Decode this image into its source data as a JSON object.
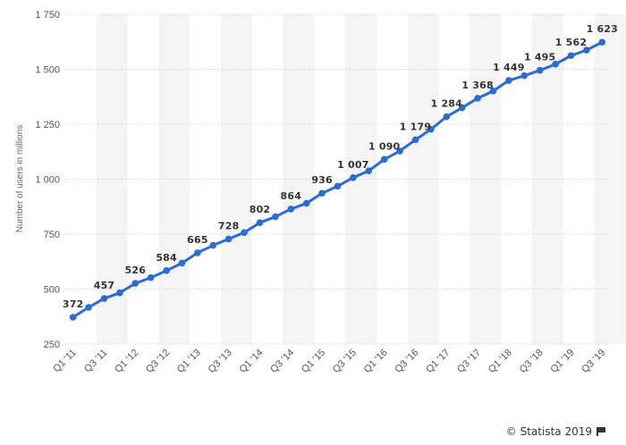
{
  "chart_data": {
    "type": "line",
    "title": "",
    "xlabel": "",
    "ylabel": "Number of users in millions",
    "ylim": [
      250,
      1750
    ],
    "yticks": [
      250,
      500,
      750,
      1000,
      1250,
      1500,
      1750
    ],
    "ytick_labels": [
      "250",
      "500",
      "750",
      "1 000",
      "1 250",
      "1 500",
      "1 750"
    ],
    "categories": [
      "Q1 '11",
      "Q2 '11",
      "Q3 '11",
      "Q4 '11",
      "Q1 '12",
      "Q2 '12",
      "Q3 '12",
      "Q4 '12",
      "Q1 '13",
      "Q2 '13",
      "Q3 '13",
      "Q4 '13",
      "Q1 '14",
      "Q2 '14",
      "Q3 '14",
      "Q4 '14",
      "Q1 '15",
      "Q2 '15",
      "Q3 '15",
      "Q4 '15",
      "Q1 '16",
      "Q2 '16",
      "Q3 '16",
      "Q4 '16",
      "Q1 '17",
      "Q2 '17",
      "Q3 '17",
      "Q4 '17",
      "Q1 '18",
      "Q2 '18",
      "Q3 '18",
      "Q4 '18",
      "Q1 '19",
      "Q2 '19",
      "Q3 '19"
    ],
    "xtick_labels": [
      "Q1 '11",
      "Q3 '11",
      "Q1 '12",
      "Q3 '12",
      "Q1 '13",
      "Q3 '13",
      "Q1 '14",
      "Q3 '14",
      "Q1 '15",
      "Q3 '15",
      "Q1 '16",
      "Q3 '16",
      "Q1 '17",
      "Q3 '17",
      "Q1 '18",
      "Q3 '18",
      "Q1 '19",
      "Q3 '19"
    ],
    "series": [
      {
        "name": "",
        "values": [
          372,
          417,
          457,
          483,
          526,
          552,
          584,
          618,
          665,
          699,
          728,
          757,
          802,
          829,
          864,
          890,
          936,
          968,
          1007,
          1038,
          1090,
          1128,
          1179,
          1227,
          1284,
          1325,
          1368,
          1401,
          1449,
          1471,
          1495,
          1523,
          1562,
          1587,
          1623
        ],
        "data_labels": {
          "0": "372",
          "2": "457",
          "4": "526",
          "6": "584",
          "8": "665",
          "10": "728",
          "12": "802",
          "14": "864",
          "16": "936",
          "18": "1 007",
          "20": "1 090",
          "22": "1 179",
          "24": "1 284",
          "26": "1 368",
          "28": "1 449",
          "30": "1 495",
          "32": "1 562",
          "34": "1 623"
        }
      }
    ],
    "grid": true,
    "legend": "none",
    "line_color": "#2b6bd6",
    "band_color": "#f4f4f4",
    "grid_color": "#cfcfcf"
  },
  "footer": {
    "credit": "© Statista 2019"
  }
}
